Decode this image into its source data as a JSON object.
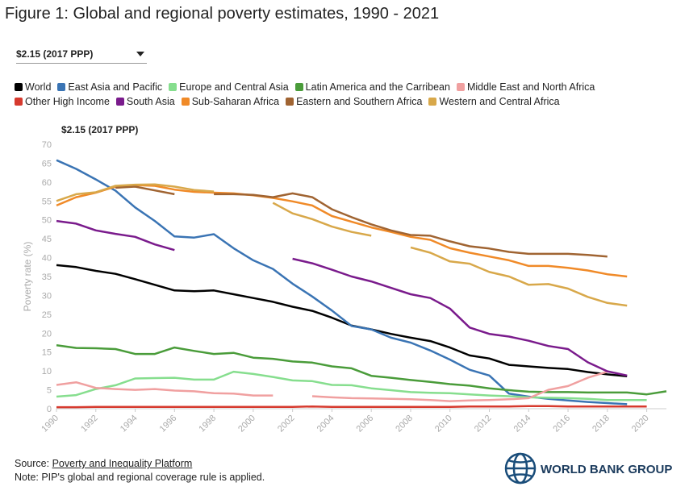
{
  "header": {
    "title": "Figure 1: Global and regional poverty estimates, 1990 - 2021",
    "dropdown": "$2.15 (2017 PPP)"
  },
  "chart_data": {
    "type": "line",
    "subtitle": "$2.15 (2017 PPP)",
    "y_label": "Poverty rate (%)",
    "x": [
      1990,
      1991,
      1992,
      1993,
      1994,
      1995,
      1996,
      1997,
      1998,
      1999,
      2000,
      2001,
      2002,
      2003,
      2004,
      2005,
      2006,
      2007,
      2008,
      2009,
      2010,
      2011,
      2012,
      2013,
      2014,
      2015,
      2016,
      2017,
      2018,
      2019,
      2020,
      2021
    ],
    "xlim": [
      1990,
      2021
    ],
    "xticks": [
      1990,
      1992,
      1994,
      1996,
      1998,
      2000,
      2002,
      2004,
      2006,
      2008,
      2010,
      2012,
      2014,
      2016,
      2018,
      2020
    ],
    "ylim": [
      0,
      70
    ],
    "yticks": [
      0,
      5,
      10,
      15,
      20,
      25,
      30,
      35,
      40,
      45,
      50,
      55,
      60,
      65,
      70
    ],
    "grid": false,
    "series": [
      {
        "name": "World",
        "color": "#000000",
        "values": [
          38,
          37.5,
          36.5,
          35.7,
          34.3,
          32.8,
          31.3,
          31.1,
          31.3,
          30.3,
          29.3,
          28.3,
          27,
          25.9,
          24.1,
          22,
          21,
          19.8,
          18.8,
          17.9,
          16.2,
          14.1,
          13.3,
          11.6,
          11.2,
          10.8,
          10.5,
          9.7,
          9.1,
          8.6,
          null,
          null
        ]
      },
      {
        "name": "East Asia and Pacific",
        "color": "#3a74b4",
        "values": [
          65.8,
          63.5,
          60.7,
          57.7,
          53.3,
          49.7,
          45.6,
          45.3,
          46.2,
          42.5,
          39.3,
          37,
          33.1,
          29.7,
          26,
          21.9,
          21,
          18.8,
          17.5,
          15.4,
          13,
          10.3,
          8.8,
          4,
          3.2,
          2.6,
          2.2,
          1.8,
          1.5,
          1.2,
          null,
          null
        ]
      },
      {
        "name": "Europe and Central Asia",
        "color": "#86de8e",
        "values": [
          3.2,
          3.6,
          5.2,
          6.2,
          8,
          8.1,
          8.2,
          7.7,
          7.7,
          9.8,
          9.2,
          8.4,
          7.5,
          7.3,
          6.3,
          6.2,
          5.4,
          4.9,
          4.4,
          4.2,
          4.1,
          3.8,
          3.5,
          3.3,
          3,
          2.9,
          2.8,
          2.6,
          2.3,
          2.3,
          2.3,
          null
        ]
      },
      {
        "name": "Latin America and the Carribean",
        "color": "#4a9c3a",
        "values": [
          16.8,
          16.1,
          16,
          15.8,
          14.5,
          14.5,
          16.2,
          15.3,
          14.5,
          14.8,
          13.5,
          13.2,
          12.5,
          12.2,
          11.2,
          10.7,
          8.7,
          8.2,
          7.6,
          7.1,
          6.5,
          6.1,
          5.4,
          4.9,
          4.5,
          4.4,
          4.4,
          4.3,
          4.3,
          4.3,
          3.8,
          4.6
        ]
      },
      {
        "name": "Middle East and North Africa",
        "color": "#f0a0a0",
        "values": [
          6.3,
          7,
          5.5,
          5.2,
          5,
          5.2,
          4.8,
          4.6,
          4.1,
          4,
          3.5,
          3.5,
          null,
          3.3,
          3,
          2.8,
          2.7,
          2.6,
          2.5,
          2.3,
          2,
          2.2,
          2.3,
          2.5,
          2.8,
          5,
          6,
          8.2,
          9.8,
          null,
          null,
          null
        ]
      },
      {
        "name": "Other High Income",
        "color": "#d63a2e",
        "values": [
          0.4,
          0.4,
          0.5,
          0.5,
          0.5,
          0.5,
          0.5,
          0.5,
          0.5,
          0.5,
          0.5,
          0.5,
          0.5,
          0.6,
          0.5,
          0.5,
          0.5,
          0.5,
          0.5,
          0.5,
          0.5,
          0.6,
          0.6,
          0.6,
          0.7,
          0.7,
          0.6,
          0.6,
          0.6,
          0.6,
          0.6,
          null
        ]
      },
      {
        "name": "South Asia",
        "color": "#7a1b8c",
        "values": [
          49.7,
          49,
          47.2,
          46.3,
          45.5,
          43.5,
          42,
          null,
          null,
          null,
          null,
          null,
          39.7,
          38.5,
          36.8,
          35,
          33.7,
          32,
          30.3,
          29.3,
          26.5,
          21.5,
          19.8,
          19.1,
          18,
          16.6,
          15.8,
          12.3,
          9.9,
          8.8,
          null,
          null
        ]
      },
      {
        "name": "Sub-Saharan Africa",
        "color": "#f08a28",
        "values": [
          53.8,
          56,
          57.2,
          58.8,
          59.2,
          59,
          58,
          57.4,
          57.2,
          57,
          56.5,
          55.8,
          54.9,
          53.8,
          51,
          49.5,
          48,
          46.8,
          45.5,
          44.7,
          42.5,
          41.3,
          40.3,
          39.3,
          37.8,
          37.8,
          37.3,
          36.6,
          35.6,
          35,
          null,
          null
        ]
      },
      {
        "name": "Eastern and Southern Africa",
        "color": "#a06432",
        "values": [
          null,
          null,
          null,
          58.5,
          58.8,
          57.8,
          56.8,
          null,
          56.8,
          56.8,
          56.6,
          56,
          57,
          56,
          52.8,
          50.7,
          48.8,
          47.2,
          46,
          45.8,
          44.3,
          43,
          42.4,
          41.5,
          41,
          41,
          41,
          40.7,
          40.3,
          null,
          null,
          null
        ]
      },
      {
        "name": "Western and Central Africa",
        "color": "#d8a84a",
        "values": [
          55,
          56.8,
          57.3,
          59,
          59.3,
          59.4,
          58.8,
          57.9,
          57.5,
          null,
          null,
          54.5,
          51.7,
          50.2,
          48.2,
          46.8,
          45.8,
          null,
          42.7,
          41.3,
          39,
          38.4,
          36.2,
          35,
          32.8,
          33,
          31.8,
          29.6,
          28,
          27.3,
          null,
          null
        ]
      }
    ]
  },
  "footer": {
    "source_prefix": "Source:",
    "source_link": "Poverty and Inequality Platform",
    "note": "Note: PIP's global and regional coverage rule is applied.",
    "logo": "WORLD BANK GROUP"
  }
}
